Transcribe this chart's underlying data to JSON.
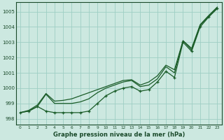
{
  "title": "Graphe pression niveau de la mer (hPa)",
  "bg_color": "#cce8e0",
  "grid_color": "#9ecec4",
  "line_color": "#1a5c28",
  "xlim": [
    -0.5,
    23.5
  ],
  "ylim": [
    997.6,
    1005.6
  ],
  "xticks": [
    0,
    1,
    2,
    3,
    4,
    5,
    6,
    7,
    8,
    9,
    10,
    11,
    12,
    13,
    14,
    15,
    16,
    17,
    18,
    19,
    20,
    21,
    22,
    23
  ],
  "yticks": [
    998,
    999,
    1000,
    1001,
    1002,
    1003,
    1004,
    1005
  ],
  "ylabel_fontsize": 5.5,
  "xlabel_fontsize": 6.0,
  "line1": [
    998.4,
    998.5,
    998.8,
    999.6,
    999.0,
    999.0,
    999.0,
    999.1,
    999.3,
    999.7,
    1000.0,
    1000.2,
    1000.4,
    1000.5,
    1000.1,
    1000.2,
    1000.6,
    1001.4,
    1001.0,
    1003.1,
    1002.5,
    1004.1,
    1004.7,
    1005.25
  ],
  "line2_smooth": [
    998.4,
    998.55,
    998.9,
    999.65,
    999.15,
    999.2,
    999.3,
    999.5,
    999.7,
    999.9,
    1000.1,
    1000.3,
    1000.5,
    1000.55,
    1000.2,
    1000.4,
    1000.8,
    1001.5,
    1001.2,
    1003.1,
    1002.6,
    1004.15,
    1004.75,
    1005.3
  ],
  "line3_dip": [
    998.4,
    998.5,
    998.8,
    998.5,
    998.4,
    998.4,
    998.4,
    998.4,
    998.5,
    999.0,
    999.5,
    999.8,
    1000.0,
    1000.1,
    999.8,
    999.9,
    1000.4,
    1001.1,
    1000.7,
    1003.0,
    1002.4,
    1004.0,
    1004.65,
    1005.2
  ],
  "line_markers": [
    998.4,
    998.5,
    998.8,
    998.5,
    998.4,
    998.4,
    998.4,
    998.4,
    998.5,
    999.0,
    999.5,
    999.8,
    1000.0,
    1000.1,
    999.8,
    999.9,
    1000.4,
    1001.1,
    1000.7,
    1003.0,
    1002.4,
    1004.0,
    1004.65,
    1005.2
  ]
}
